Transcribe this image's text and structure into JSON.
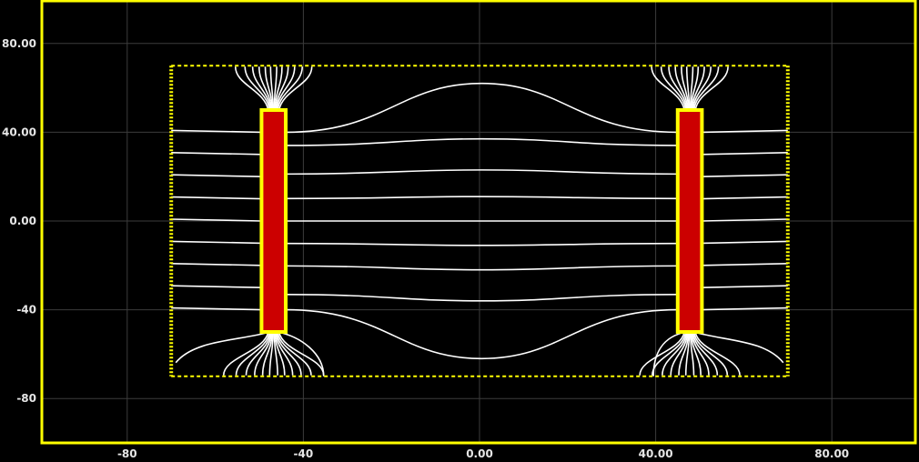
{
  "chart_data": {
    "type": "field-plot",
    "xlim": [
      -100,
      98
    ],
    "ylim": [
      -100,
      100
    ],
    "x_ticks": [
      {
        "value": -80,
        "label": "-80"
      },
      {
        "value": -40,
        "label": "-40"
      },
      {
        "value": 0,
        "label": "0.00"
      },
      {
        "value": 40,
        "label": "40.00"
      },
      {
        "value": 80,
        "label": "80.00"
      }
    ],
    "y_ticks": [
      {
        "value": 80,
        "label": "80.00"
      },
      {
        "value": 40,
        "label": "40.00"
      },
      {
        "value": 0,
        "label": "0.00"
      },
      {
        "value": -40,
        "label": "-40"
      },
      {
        "value": -80,
        "label": "-80"
      }
    ],
    "grid": true,
    "boundary": {
      "x": [
        -70,
        70
      ],
      "y": [
        -70,
        70
      ]
    },
    "magnets": [
      {
        "x": [
          -49.5,
          -44
        ],
        "y": [
          -50,
          50
        ]
      },
      {
        "x": [
          45,
          50.5
        ],
        "y": [
          -50,
          50
        ]
      }
    ],
    "center_field_lines_y": [
      -62,
      -36,
      -22,
      -11,
      0,
      11,
      23,
      37,
      62
    ],
    "outer_field_lines_y": [
      -40,
      -30,
      -20,
      -10,
      0,
      10,
      20,
      30,
      40
    ],
    "colors": {
      "background": "#000000",
      "frame": "#ffff00",
      "grid": "#3c3c3c",
      "boundary": "#ffff00",
      "magnet_fill": "#cc0000",
      "magnet_border": "#ffff00",
      "field_line": "#ffffff",
      "tick_label": "#e6e6e6"
    }
  }
}
